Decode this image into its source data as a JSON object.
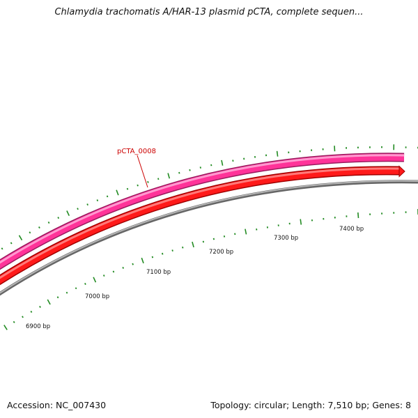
{
  "title": "Chlamydia trachomatis A/HAR-13 plasmid pCTA, complete sequen...",
  "accession": "Accession: NC_007430",
  "summary": "Topology: circular; Length: 7,510 bp; Genes: 8",
  "feature_label": "pCTA_0008",
  "ruler_labels": [
    "6900 bp",
    "7000 bp",
    "7100 bp",
    "7200 bp",
    "7300 bp",
    "7400 bp"
  ],
  "colors": {
    "gene_feature": "#ff1a1a",
    "cds_feature": "#ff3399",
    "backbone": "#888888",
    "ticks": "#228b22",
    "label": "#cc0000"
  }
}
